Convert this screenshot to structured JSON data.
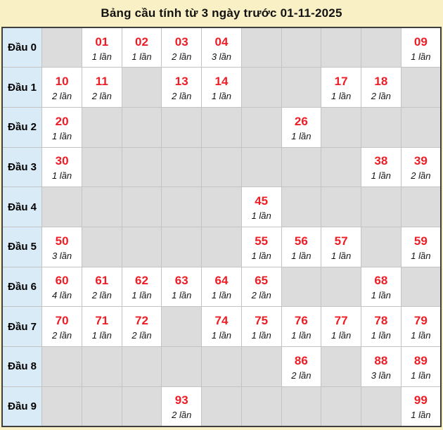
{
  "colors": {
    "page_bg": "#faf0c6",
    "title_text": "#121212",
    "table_border": "#3f3f3f",
    "grid_line": "#c3c3c3",
    "row_label_bg": "#d9ebf6",
    "empty_cell_bg": "#dcdcdc",
    "filled_cell_bg": "#ffffff",
    "number_color": "#ee1c25",
    "count_color": "#151515"
  },
  "chart_data": {
    "type": "table",
    "title": "Bảng cầu tính từ 3 ngày trước 01-11-2025",
    "row_label_prefix": "Đầu",
    "num_columns": 10,
    "columns_meaning": "units digit 0-9 (no visible headers)",
    "rows": [
      {
        "label": "Đầu 0",
        "cells": [
          null,
          {
            "number": "01",
            "count_label": "1 lần",
            "times": 1
          },
          {
            "number": "02",
            "count_label": "1 lần",
            "times": 1
          },
          {
            "number": "03",
            "count_label": "2 lần",
            "times": 2
          },
          {
            "number": "04",
            "count_label": "3 lần",
            "times": 3
          },
          null,
          null,
          null,
          null,
          {
            "number": "09",
            "count_label": "1 lần",
            "times": 1
          }
        ]
      },
      {
        "label": "Đầu 1",
        "cells": [
          {
            "number": "10",
            "count_label": "2 lần",
            "times": 2
          },
          {
            "number": "11",
            "count_label": "2 lần",
            "times": 2
          },
          null,
          {
            "number": "13",
            "count_label": "2 lần",
            "times": 2
          },
          {
            "number": "14",
            "count_label": "1 lần",
            "times": 1
          },
          null,
          null,
          {
            "number": "17",
            "count_label": "1 lần",
            "times": 1
          },
          {
            "number": "18",
            "count_label": "2 lần",
            "times": 2
          },
          null
        ]
      },
      {
        "label": "Đầu 2",
        "cells": [
          {
            "number": "20",
            "count_label": "1 lần",
            "times": 1
          },
          null,
          null,
          null,
          null,
          null,
          {
            "number": "26",
            "count_label": "1 lần",
            "times": 1
          },
          null,
          null,
          null
        ]
      },
      {
        "label": "Đầu 3",
        "cells": [
          {
            "number": "30",
            "count_label": "1 lần",
            "times": 1
          },
          null,
          null,
          null,
          null,
          null,
          null,
          null,
          {
            "number": "38",
            "count_label": "1 lần",
            "times": 1
          },
          {
            "number": "39",
            "count_label": "2 lần",
            "times": 2
          }
        ]
      },
      {
        "label": "Đầu 4",
        "cells": [
          null,
          null,
          null,
          null,
          null,
          {
            "number": "45",
            "count_label": "1 lần",
            "times": 1
          },
          null,
          null,
          null,
          null
        ]
      },
      {
        "label": "Đầu 5",
        "cells": [
          {
            "number": "50",
            "count_label": "3 lần",
            "times": 3
          },
          null,
          null,
          null,
          null,
          {
            "number": "55",
            "count_label": "1 lần",
            "times": 1
          },
          {
            "number": "56",
            "count_label": "1 lần",
            "times": 1
          },
          {
            "number": "57",
            "count_label": "1 lần",
            "times": 1
          },
          null,
          {
            "number": "59",
            "count_label": "1 lần",
            "times": 1
          }
        ]
      },
      {
        "label": "Đầu 6",
        "cells": [
          {
            "number": "60",
            "count_label": "4 lần",
            "times": 4
          },
          {
            "number": "61",
            "count_label": "2 lần",
            "times": 2
          },
          {
            "number": "62",
            "count_label": "1 lần",
            "times": 1
          },
          {
            "number": "63",
            "count_label": "1 lần",
            "times": 1
          },
          {
            "number": "64",
            "count_label": "1 lần",
            "times": 1
          },
          {
            "number": "65",
            "count_label": "2 lần",
            "times": 2
          },
          null,
          null,
          {
            "number": "68",
            "count_label": "1 lần",
            "times": 1
          },
          null
        ]
      },
      {
        "label": "Đầu 7",
        "cells": [
          {
            "number": "70",
            "count_label": "2 lần",
            "times": 2
          },
          {
            "number": "71",
            "count_label": "1 lần",
            "times": 1
          },
          {
            "number": "72",
            "count_label": "2 lần",
            "times": 2
          },
          null,
          {
            "number": "74",
            "count_label": "1 lần",
            "times": 1
          },
          {
            "number": "75",
            "count_label": "1 lần",
            "times": 1
          },
          {
            "number": "76",
            "count_label": "1 lần",
            "times": 1
          },
          {
            "number": "77",
            "count_label": "1 lần",
            "times": 1
          },
          {
            "number": "78",
            "count_label": "1 lần",
            "times": 1
          },
          {
            "number": "79",
            "count_label": "1 lần",
            "times": 1
          }
        ]
      },
      {
        "label": "Đầu 8",
        "cells": [
          null,
          null,
          null,
          null,
          null,
          null,
          {
            "number": "86",
            "count_label": "2 lần",
            "times": 2
          },
          null,
          {
            "number": "88",
            "count_label": "3 lần",
            "times": 3
          },
          {
            "number": "89",
            "count_label": "1 lần",
            "times": 1
          }
        ]
      },
      {
        "label": "Đầu 9",
        "cells": [
          null,
          null,
          null,
          {
            "number": "93",
            "count_label": "2 lần",
            "times": 2
          },
          null,
          null,
          null,
          null,
          null,
          {
            "number": "99",
            "count_label": "1 lần",
            "times": 1
          }
        ]
      }
    ]
  }
}
